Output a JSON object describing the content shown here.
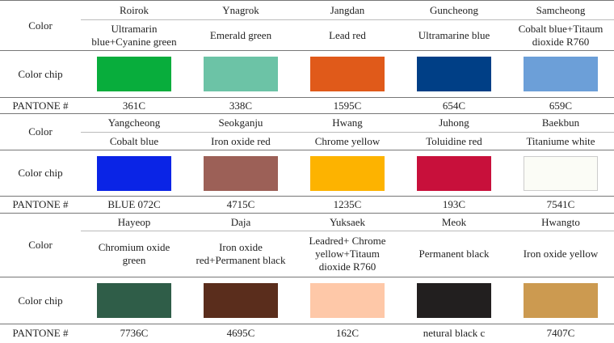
{
  "blocks": [
    {
      "color_label": "Color",
      "chip_label": "Color chip",
      "pantone_label": "PANTONE #",
      "names": [
        "Roirok",
        "Ynagrok",
        "Jangdan",
        "Guncheong",
        "Samcheong"
      ],
      "pigments": [
        "Ultramarin blue+Cyanine green",
        "Emerald green",
        "Lead red",
        "Ultramarine blue",
        "Cobalt blue+Titaum dioxide R760"
      ],
      "chip_colors": [
        "#08ad3c",
        "#6cc3a6",
        "#e05a1a",
        "#003f86",
        "#6c9fd8"
      ],
      "pantone": [
        "361C",
        "338C",
        "1595C",
        "654C",
        "659C"
      ]
    },
    {
      "color_label": "Color",
      "chip_label": "Color chip",
      "pantone_label": "PANTONE #",
      "names": [
        "Yangcheong",
        "Seokganju",
        "Hwang",
        "Juhong",
        "Baekbun"
      ],
      "pigments": [
        "Cobalt blue",
        "Iron oxide red",
        "Chrome yellow",
        "Toluidine red",
        "Titaniume white"
      ],
      "chip_colors": [
        "#0a24e6",
        "#9c6057",
        "#fdb300",
        "#c8103b",
        "#fbfcf6"
      ],
      "pantone": [
        "BLUE 072C",
        "4715C",
        "1235C",
        "193C",
        "7541C"
      ]
    },
    {
      "color_label": "Color",
      "chip_label": "Color chip",
      "pantone_label": "PANTONE #",
      "names": [
        "Hayeop",
        "Daja",
        "Yuksaek",
        "Meok",
        "Hwangto"
      ],
      "pigments": [
        "Chromium oxide green",
        "Iron oxide red+Permanent black",
        "Leadred+ Chrome yellow+Titaum dioxide R760",
        "Permanent black",
        "Iron oxide yellow"
      ],
      "chip_colors": [
        "#2f5d48",
        "#5a2d1c",
        "#fec8a8",
        "#221f1f",
        "#cc9a50"
      ],
      "pantone": [
        "7736C",
        "4695C",
        "162C",
        "netural black c",
        "7407C"
      ]
    }
  ]
}
